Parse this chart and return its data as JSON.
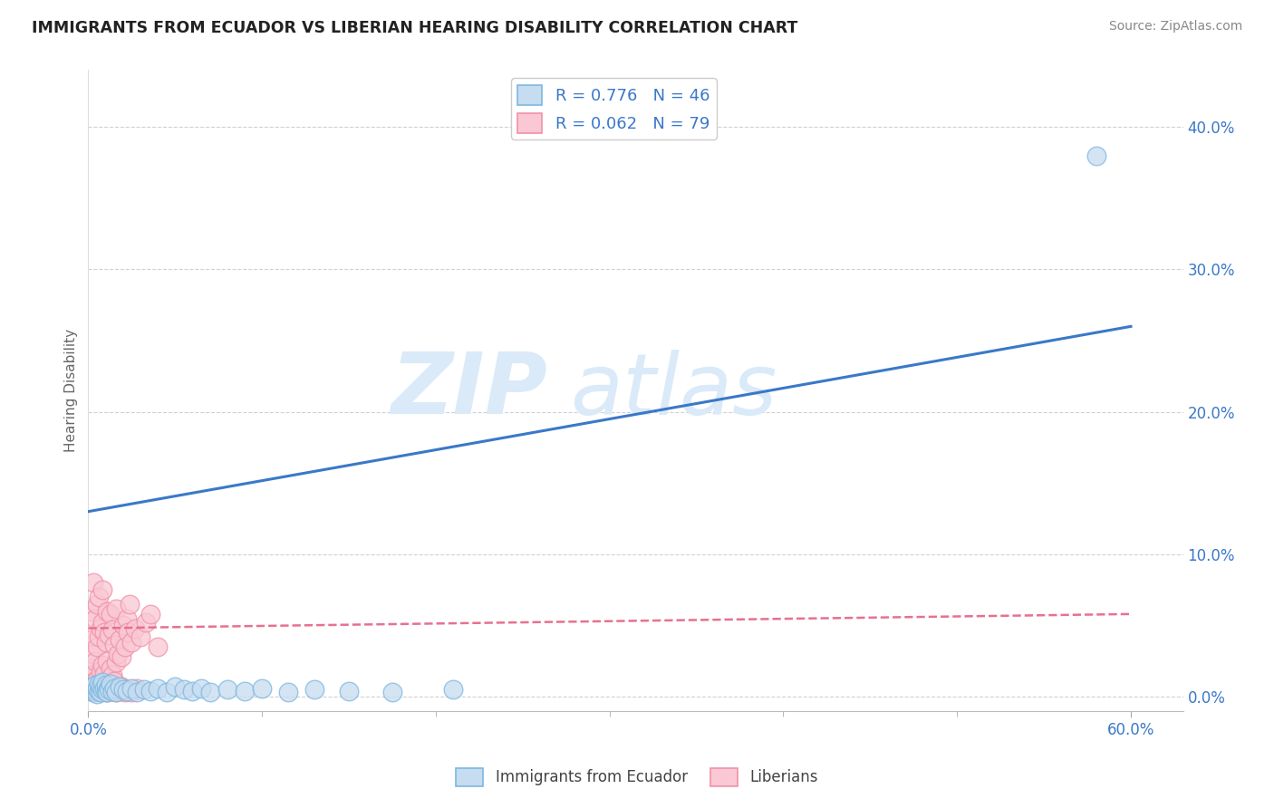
{
  "title": "IMMIGRANTS FROM ECUADOR VS LIBERIAN HEARING DISABILITY CORRELATION CHART",
  "source": "Source: ZipAtlas.com",
  "ylabel": "Hearing Disability",
  "watermark_zip": "ZIP",
  "watermark_atlas": "atlas",
  "legend_label1": "Immigrants from Ecuador",
  "legend_label2": "Liberians",
  "R1": 0.776,
  "N1": 46,
  "R2": 0.062,
  "N2": 79,
  "color1_face": "#c6dcf0",
  "color1_edge": "#7db8e0",
  "color2_face": "#f9c8d4",
  "color2_edge": "#f090a8",
  "line1_color": "#3a78c9",
  "line2_color": "#e87090",
  "xlim": [
    0.0,
    0.63
  ],
  "ylim": [
    -0.01,
    0.44
  ],
  "xtick_positions": [
    0.0,
    0.6
  ],
  "xtick_labels": [
    "0.0%",
    "60.0%"
  ],
  "ytick_vals": [
    0.0,
    0.1,
    0.2,
    0.3,
    0.4
  ],
  "ytick_labels": [
    "0.0%",
    "10.0%",
    "20.0%",
    "30.0%",
    "40.0%"
  ],
  "blue_line_x": [
    0.0,
    0.6
  ],
  "blue_line_y": [
    0.13,
    0.26
  ],
  "pink_line_x": [
    0.0,
    0.6
  ],
  "pink_line_y": [
    0.048,
    0.058
  ],
  "ecuador_x": [
    0.002,
    0.003,
    0.003,
    0.004,
    0.004,
    0.005,
    0.005,
    0.006,
    0.006,
    0.007,
    0.007,
    0.008,
    0.008,
    0.009,
    0.01,
    0.01,
    0.011,
    0.012,
    0.012,
    0.013,
    0.014,
    0.015,
    0.016,
    0.018,
    0.02,
    0.022,
    0.025,
    0.028,
    0.032,
    0.036,
    0.04,
    0.045,
    0.05,
    0.055,
    0.06,
    0.065,
    0.07,
    0.08,
    0.09,
    0.1,
    0.115,
    0.13,
    0.15,
    0.175,
    0.21,
    0.58
  ],
  "ecuador_y": [
    0.005,
    0.003,
    0.007,
    0.004,
    0.008,
    0.002,
    0.006,
    0.004,
    0.009,
    0.003,
    0.007,
    0.005,
    0.01,
    0.006,
    0.004,
    0.008,
    0.003,
    0.007,
    0.005,
    0.009,
    0.004,
    0.006,
    0.003,
    0.007,
    0.005,
    0.004,
    0.006,
    0.003,
    0.005,
    0.004,
    0.006,
    0.003,
    0.007,
    0.005,
    0.004,
    0.006,
    0.003,
    0.005,
    0.004,
    0.006,
    0.003,
    0.005,
    0.004,
    0.003,
    0.005,
    0.38
  ],
  "liberian_x": [
    0.001,
    0.001,
    0.002,
    0.002,
    0.003,
    0.003,
    0.003,
    0.004,
    0.004,
    0.005,
    0.005,
    0.005,
    0.006,
    0.006,
    0.006,
    0.007,
    0.007,
    0.008,
    0.008,
    0.008,
    0.009,
    0.009,
    0.01,
    0.01,
    0.011,
    0.011,
    0.012,
    0.012,
    0.013,
    0.013,
    0.014,
    0.014,
    0.015,
    0.015,
    0.016,
    0.016,
    0.017,
    0.018,
    0.019,
    0.02,
    0.021,
    0.022,
    0.023,
    0.024,
    0.025,
    0.027,
    0.03,
    0.033,
    0.036,
    0.04,
    0.002,
    0.003,
    0.004,
    0.005,
    0.006,
    0.007,
    0.008,
    0.009,
    0.01,
    0.011,
    0.012,
    0.013,
    0.014,
    0.015,
    0.016,
    0.017,
    0.018,
    0.019,
    0.02,
    0.021,
    0.004,
    0.007,
    0.01,
    0.013,
    0.016,
    0.019,
    0.022,
    0.025,
    0.028
  ],
  "liberian_y": [
    0.02,
    0.06,
    0.015,
    0.04,
    0.01,
    0.03,
    0.08,
    0.025,
    0.055,
    0.012,
    0.035,
    0.065,
    0.008,
    0.042,
    0.07,
    0.018,
    0.048,
    0.022,
    0.052,
    0.075,
    0.016,
    0.045,
    0.01,
    0.038,
    0.025,
    0.06,
    0.013,
    0.043,
    0.02,
    0.058,
    0.015,
    0.047,
    0.011,
    0.036,
    0.024,
    0.062,
    0.03,
    0.04,
    0.028,
    0.05,
    0.035,
    0.055,
    0.045,
    0.065,
    0.038,
    0.048,
    0.042,
    0.052,
    0.058,
    0.035,
    0.005,
    0.003,
    0.006,
    0.004,
    0.007,
    0.005,
    0.008,
    0.004,
    0.006,
    0.003,
    0.007,
    0.005,
    0.004,
    0.006,
    0.003,
    0.007,
    0.005,
    0.004,
    0.006,
    0.003,
    0.004,
    0.006,
    0.003,
    0.005,
    0.004,
    0.007,
    0.005,
    0.003,
    0.006
  ]
}
